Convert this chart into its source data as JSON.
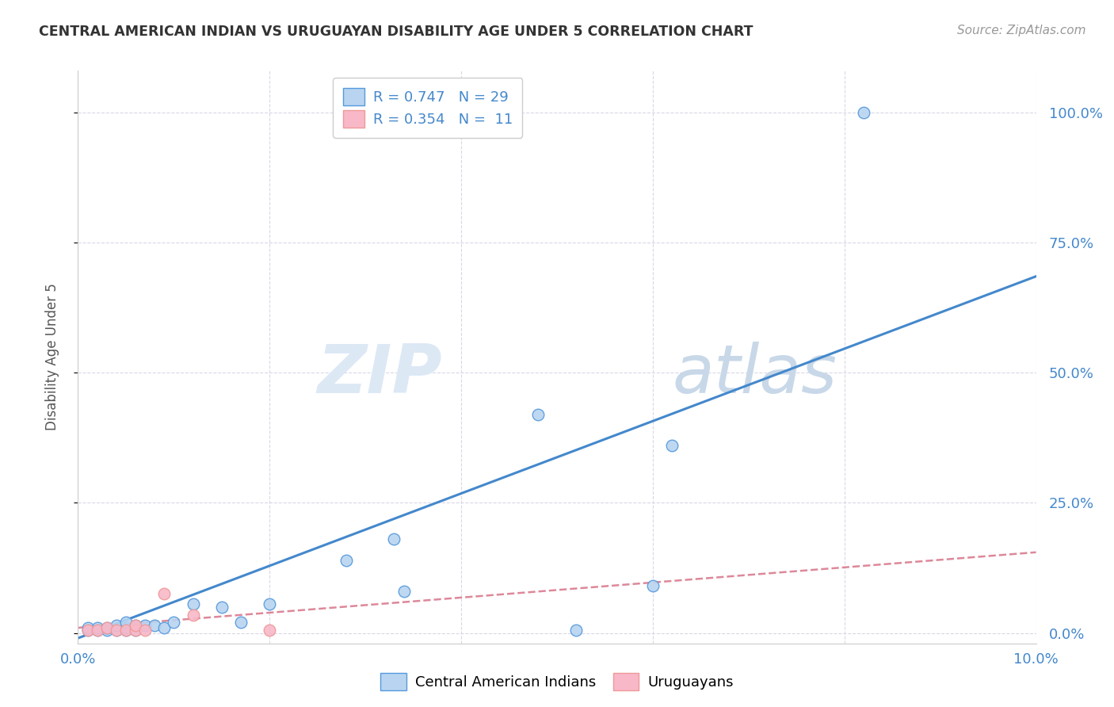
{
  "title": "CENTRAL AMERICAN INDIAN VS URUGUAYAN DISABILITY AGE UNDER 5 CORRELATION CHART",
  "source": "Source: ZipAtlas.com",
  "ylabel": "Disability Age Under 5",
  "yaxis_labels": [
    "0.0%",
    "25.0%",
    "50.0%",
    "75.0%",
    "100.0%"
  ],
  "yaxis_values": [
    0,
    0.25,
    0.5,
    0.75,
    1.0
  ],
  "xaxis_range": [
    0,
    0.1
  ],
  "yaxis_range": [
    -0.02,
    1.08
  ],
  "blue_R": 0.747,
  "blue_N": 29,
  "pink_R": 0.354,
  "pink_N": 11,
  "blue_color": "#b8d4f0",
  "pink_color": "#f8b8c8",
  "blue_edge_color": "#5599dd",
  "pink_edge_color": "#ee9999",
  "blue_line_color": "#4488cc",
  "pink_line_color": "#dd8899",
  "legend_label_blue": "Central American Indians",
  "legend_label_pink": "Uruguayans",
  "watermark_zip": "ZIP",
  "watermark_atlas": "atlas",
  "blue_scatter_x": [
    0.001,
    0.001,
    0.002,
    0.002,
    0.003,
    0.003,
    0.004,
    0.004,
    0.005,
    0.005,
    0.005,
    0.006,
    0.006,
    0.007,
    0.008,
    0.009,
    0.01,
    0.012,
    0.015,
    0.017,
    0.02,
    0.028,
    0.033,
    0.034,
    0.048,
    0.052,
    0.06,
    0.062,
    0.082
  ],
  "blue_scatter_y": [
    0.005,
    0.01,
    0.005,
    0.01,
    0.005,
    0.01,
    0.005,
    0.015,
    0.005,
    0.01,
    0.02,
    0.005,
    0.015,
    0.015,
    0.015,
    0.01,
    0.02,
    0.055,
    0.05,
    0.02,
    0.055,
    0.14,
    0.18,
    0.08,
    0.42,
    0.005,
    0.09,
    0.36,
    1.0
  ],
  "pink_scatter_x": [
    0.001,
    0.002,
    0.003,
    0.004,
    0.005,
    0.006,
    0.006,
    0.007,
    0.009,
    0.012,
    0.02
  ],
  "pink_scatter_y": [
    0.005,
    0.005,
    0.01,
    0.005,
    0.005,
    0.005,
    0.015,
    0.005,
    0.075,
    0.035,
    0.005
  ],
  "blue_line_x": [
    0.0,
    0.1
  ],
  "blue_line_y": [
    -0.01,
    0.685
  ],
  "pink_line_x": [
    0.0,
    0.1
  ],
  "pink_line_y": [
    0.01,
    0.155
  ],
  "title_color": "#333333",
  "axis_tick_color": "#4488cc",
  "grid_color": "#d8d8e8",
  "background_color": "#ffffff",
  "x_grid_ticks": [
    0.0,
    0.02,
    0.04,
    0.06,
    0.08,
    0.1
  ],
  "x_axis_ticks": [
    0.0,
    0.1
  ]
}
